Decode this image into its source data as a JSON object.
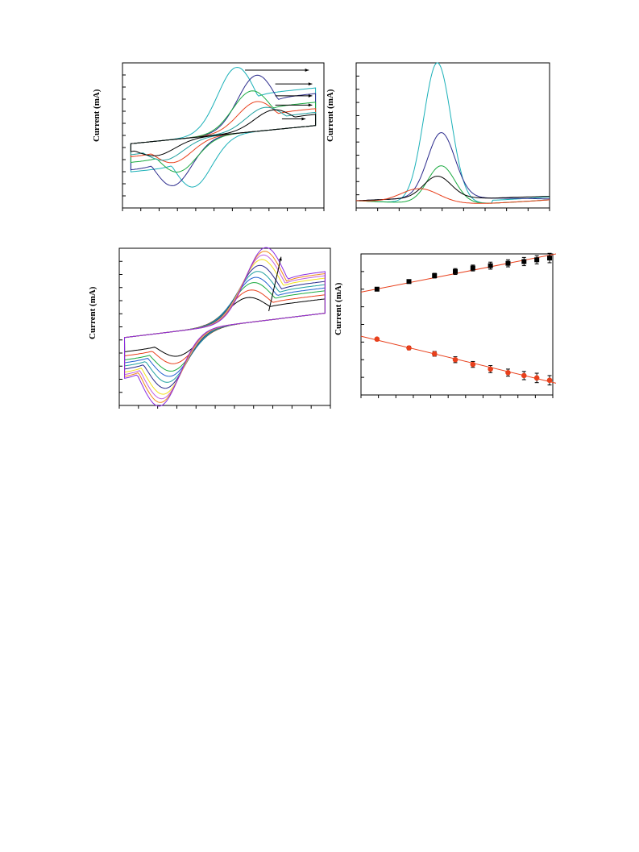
{
  "colors": {
    "black": "#000000",
    "red": "#e8401c",
    "green": "#1aaa40",
    "cyan": "#1ab0b8",
    "navy": "#2a2a8c",
    "blue": "#2060d0",
    "yellow": "#f2e020",
    "purple": "#8a2be2",
    "orange": "#f08a1a",
    "violet": "#c060e0",
    "teal": "#20a0a0",
    "fit_line": "#e8401c"
  },
  "chart_data": [
    {
      "id": "cv-top-left",
      "type": "line",
      "ylabel": "Current (mA)",
      "xlabel": "",
      "title": "",
      "xlim": [
        -0.35,
        0.85
      ],
      "ylim": [
        -1.1,
        1.1
      ],
      "series": [
        {
          "color": "#1ab0b8",
          "peak_x": 0.33,
          "peak_y": 1.0,
          "valley_y": -0.75
        },
        {
          "color": "#2a2a8c",
          "peak_x": 0.45,
          "peak_y": 0.85,
          "valley_y": -0.7
        },
        {
          "color": "#1aaa40",
          "peak_x": 0.42,
          "peak_y": 0.62,
          "valley_y": -0.5
        },
        {
          "color": "#e8401c",
          "peak_x": 0.45,
          "peak_y": 0.45,
          "valley_y": -0.35
        },
        {
          "color": "#20a0a0",
          "peak_x": 0.5,
          "peak_y": 0.35,
          "valley_y": -0.3
        },
        {
          "color": "#000000",
          "peak_x": 0.55,
          "peak_y": 0.3,
          "valley_y": -0.22
        }
      ],
      "arrows": 5
    },
    {
      "id": "dpv-top-right",
      "type": "line",
      "ylabel": "Current (mA)",
      "xlabel": "",
      "title": "",
      "xlim": [
        0,
        1
      ],
      "ylim": [
        0,
        1.0
      ],
      "series": [
        {
          "color": "#1ab0b8",
          "peak_x": 0.42,
          "peak_y": 0.97
        },
        {
          "color": "#2a2a8c",
          "peak_x": 0.44,
          "peak_y": 0.45
        },
        {
          "color": "#1aaa40",
          "peak_x": 0.44,
          "peak_y": 0.26
        },
        {
          "color": "#000000",
          "peak_x": 0.42,
          "peak_y": 0.15
        },
        {
          "color": "#e8401c",
          "peak_x": 0.33,
          "peak_y": 0.1
        }
      ]
    },
    {
      "id": "cv-bottom-left",
      "type": "line",
      "ylabel": "Current (mA)",
      "xlabel": "",
      "title": "",
      "xlim": [
        -0.35,
        0.85
      ],
      "ylim": [
        -1.1,
        1.1
      ],
      "series": [
        {
          "color": "#000000",
          "amp": 0.35
        },
        {
          "color": "#e8401c",
          "amp": 0.45
        },
        {
          "color": "#1aaa40",
          "amp": 0.55
        },
        {
          "color": "#2060d0",
          "amp": 0.62
        },
        {
          "color": "#20a0a0",
          "amp": 0.7
        },
        {
          "color": "#2a2a8c",
          "amp": 0.78
        },
        {
          "color": "#f2e020",
          "amp": 0.86
        },
        {
          "color": "#c060e0",
          "amp": 0.92
        },
        {
          "color": "#f08a1a",
          "amp": 0.97
        },
        {
          "color": "#8a2be2",
          "amp": 1.02
        }
      ],
      "arrows": 1
    },
    {
      "id": "linear-bottom-right",
      "type": "scatter",
      "ylabel": "Current (mA)",
      "xlabel": "",
      "title": "",
      "xlim": [
        0,
        12
      ],
      "ylim": [
        -1.2,
        1.2
      ],
      "series": [
        {
          "marker": "square",
          "color": "#000000",
          "x": [
            1,
            3,
            4.6,
            5.9,
            7,
            8.1,
            9.2,
            10.2,
            11,
            11.8
          ],
          "y": [
            0.6,
            0.73,
            0.83,
            0.9,
            0.96,
            1.0,
            1.04,
            1.07,
            1.1,
            1.13
          ],
          "err": [
            0.02,
            0.03,
            0.04,
            0.05,
            0.05,
            0.06,
            0.06,
            0.07,
            0.07,
            0.08
          ]
        },
        {
          "marker": "circle",
          "color": "#e8401c",
          "x": [
            1,
            3,
            4.6,
            5.9,
            7,
            8.1,
            9.2,
            10.2,
            11,
            11.8
          ],
          "y": [
            -0.25,
            -0.4,
            -0.5,
            -0.6,
            -0.68,
            -0.76,
            -0.82,
            -0.87,
            -0.91,
            -0.95
          ],
          "err": [
            0.02,
            0.03,
            0.04,
            0.05,
            0.05,
            0.06,
            0.06,
            0.07,
            0.08,
            0.08
          ]
        }
      ],
      "fits": [
        {
          "color": "#e8401c",
          "x": [
            0,
            12.2
          ],
          "y": [
            0.55,
            1.2
          ]
        },
        {
          "color": "#e8401c",
          "x": [
            0,
            12.2
          ],
          "y": [
            -0.2,
            -1.0
          ]
        }
      ]
    }
  ]
}
